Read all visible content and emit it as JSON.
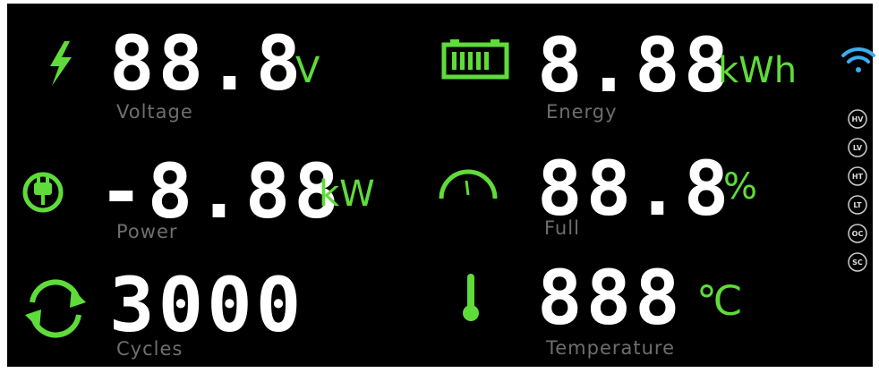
{
  "readouts": [
    {
      "value": "88.8",
      "unit": "V",
      "label": "Voltage"
    },
    {
      "value": "8.88",
      "unit": "kWh",
      "label": "Energy"
    },
    {
      "value": "-8.88",
      "unit": "kW",
      "label": "Power"
    },
    {
      "value": "88.8",
      "unit": "%",
      "label": "Full"
    },
    {
      "value": "3000",
      "label": "Cycles"
    },
    {
      "value": "888",
      "unit": "℃",
      "label": "Temperature"
    }
  ],
  "status": [
    "HV",
    "LV",
    "HT",
    "LT",
    "OC",
    "SC"
  ]
}
